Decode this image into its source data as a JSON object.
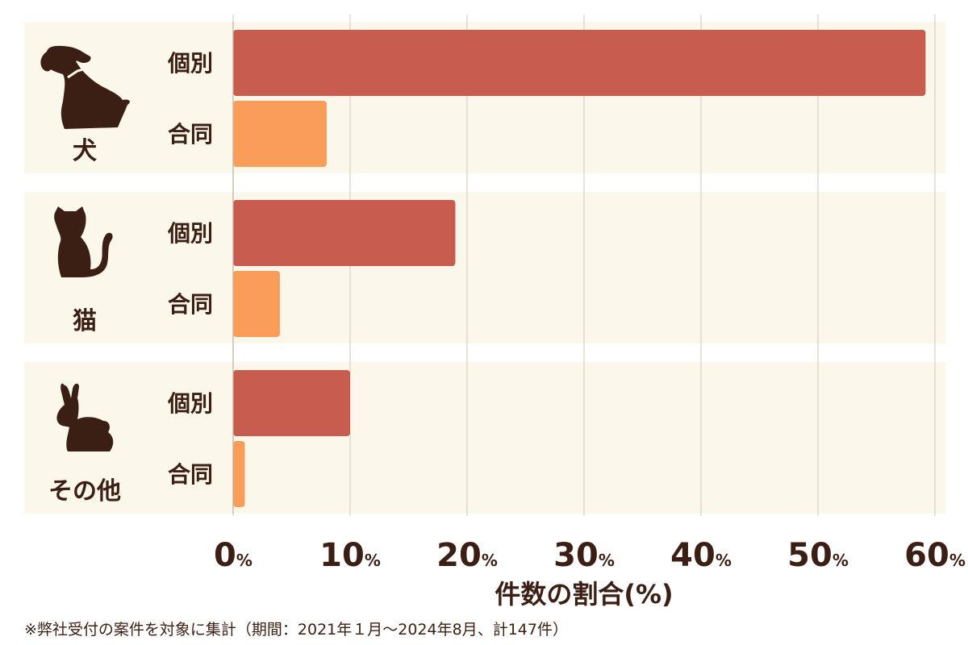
{
  "chart_data": {
    "type": "bar",
    "orientation": "horizontal",
    "groups": [
      {
        "name": "犬",
        "icon": "dog-icon",
        "bars": [
          {
            "label": "個別",
            "value": 59.2
          },
          {
            "label": "合同",
            "value": 8.0
          }
        ]
      },
      {
        "name": "猫",
        "icon": "cat-icon",
        "bars": [
          {
            "label": "個別",
            "value": 19.0
          },
          {
            "label": "合同",
            "value": 4.0
          }
        ]
      },
      {
        "name": "その他",
        "icon": "rabbit-icon",
        "bars": [
          {
            "label": "個別",
            "value": 10.0
          },
          {
            "label": "合同",
            "value": 1.0
          }
        ]
      }
    ],
    "xticks": [
      0,
      10,
      20,
      30,
      40,
      50,
      60
    ],
    "tick_unit": "%",
    "xlabel": "件数の割合(%)",
    "xlim": [
      0,
      60
    ],
    "grid": true,
    "colors": {
      "個別": "#c85c4e",
      "合同": "#f99d59",
      "panel": "#fcf7eb",
      "grid": "#d8d2c4",
      "text": "#3b1f14"
    }
  },
  "footnote": "※弊社受付の案件を対象に集計（期間：2021年１月〜2024年8月、計147件）"
}
